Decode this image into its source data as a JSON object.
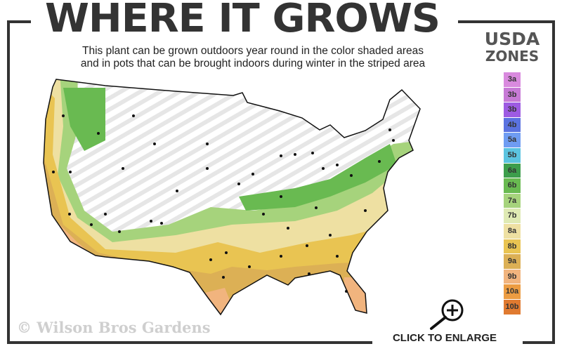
{
  "header": {
    "title": "WHERE IT GROWS",
    "subtitle_line1": "This plant can be grown outdoors year round in the color shaded areas",
    "subtitle_line2": "and in pots that can be brought indoors during winter in the striped area"
  },
  "legend": {
    "title_line1": "USDA",
    "title_line2": "ZONES",
    "zones": [
      {
        "label": "3a",
        "color": "#d98ade"
      },
      {
        "label": "3b",
        "color": "#c77ad6"
      },
      {
        "label": "3b",
        "color": "#9d5be2"
      },
      {
        "label": "4b",
        "color": "#5a72e0"
      },
      {
        "label": "5a",
        "color": "#6f9cf2"
      },
      {
        "label": "5b",
        "color": "#5cc4e0"
      },
      {
        "label": "6a",
        "color": "#3d9e4c"
      },
      {
        "label": "6b",
        "color": "#69ba51"
      },
      {
        "label": "7a",
        "color": "#a6d37c"
      },
      {
        "label": "7b",
        "color": "#dfeab4"
      },
      {
        "label": "8a",
        "color": "#eee0a2"
      },
      {
        "label": "8b",
        "color": "#e9c452"
      },
      {
        "label": "9a",
        "color": "#dcb055"
      },
      {
        "label": "9b",
        "color": "#f1b47e"
      },
      {
        "label": "10a",
        "color": "#ec9c42"
      },
      {
        "label": "10b",
        "color": "#e07a30"
      }
    ]
  },
  "watermark": "© Wilson Bros Gardens",
  "enlarge": {
    "label": "CLICK TO ENLARGE",
    "icon": "zoom-in-icon"
  }
}
